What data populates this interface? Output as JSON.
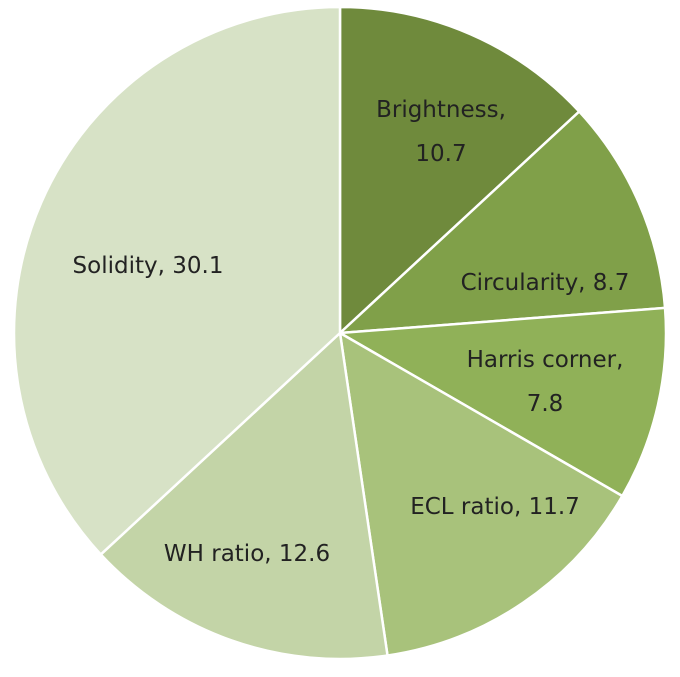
{
  "chart_data": {
    "type": "pie",
    "values": [
      10.7,
      8.7,
      7.8,
      11.7,
      12.6,
      30.1
    ],
    "value_labels": [
      "Brightness, 10.7",
      "Circularity, 8.7",
      "Harris corner, 7.8",
      "ECL ratio, 11.7",
      "WH ratio, 12.6",
      "Solidity, 30.1"
    ],
    "colors": [
      "#6f8a3c",
      "#80a049",
      "#90b158",
      "#a8c27b",
      "#c3d4a7",
      "#d7e2c6"
    ]
  }
}
